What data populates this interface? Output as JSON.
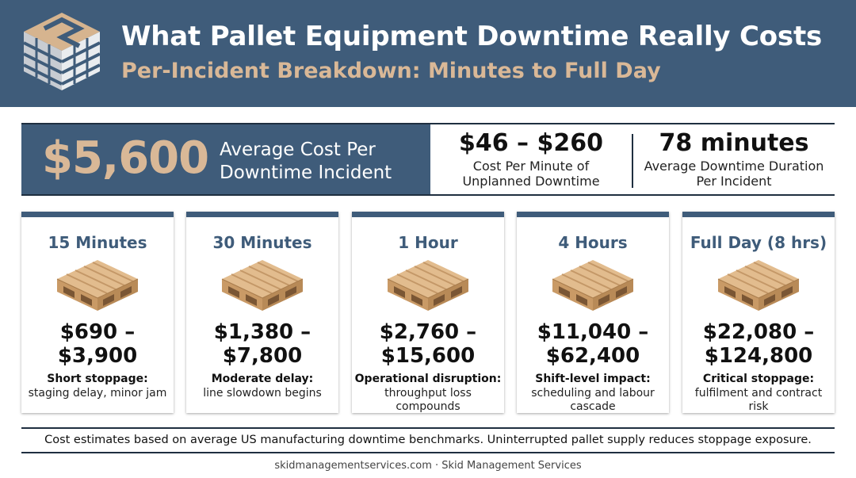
{
  "header": {
    "title": "What Pallet Equipment Downtime Really Costs",
    "subtitle": "Per-Incident Breakdown: Minutes to Full Day",
    "logo_icon": "pallet-stack-logo-icon"
  },
  "stats": {
    "average_cost": "$5,600",
    "average_cost_label": "Average Cost Per Downtime Incident",
    "per_minute_value": "$46 – $260",
    "per_minute_label": "Cost Per Minute of Unplanned Downtime",
    "duration_value": "78 minutes",
    "duration_label": "Average Downtime Duration Per Incident"
  },
  "cards": [
    {
      "title": "15 Minutes",
      "cost_line1": "$690 –",
      "cost_line2": "$3,900",
      "desc_title": "Short stoppage:",
      "desc": "staging delay, minor jam"
    },
    {
      "title": "30 Minutes",
      "cost_line1": "$1,380 –",
      "cost_line2": "$7,800",
      "desc_title": "Moderate delay:",
      "desc": "line slowdown begins"
    },
    {
      "title": "1 Hour",
      "cost_line1": "$2,760 –",
      "cost_line2": "$15,600",
      "desc_title": "Operational disruption:",
      "desc": "throughput loss compounds"
    },
    {
      "title": "4 Hours",
      "cost_line1": "$11,040 –",
      "cost_line2": "$62,400",
      "desc_title": "Shift-level impact:",
      "desc": "scheduling and labour cascade"
    },
    {
      "title": "Full Day (8 hrs)",
      "cost_line1": "$22,080 –",
      "cost_line2": "$124,800",
      "desc_title": "Critical stoppage:",
      "desc": "fulfilment and contract risk"
    }
  ],
  "footer": {
    "note": "Cost estimates based on average US manufacturing downtime benchmarks. Uninterrupted pallet supply reduces stoppage exposure.",
    "credit": "skidmanagementservices.com · Skid Management Services"
  },
  "colors": {
    "navy": "#3f5c7a",
    "tan": "#d9b897",
    "wood_light": "#e2bc8e",
    "wood_dark": "#b88a57"
  }
}
